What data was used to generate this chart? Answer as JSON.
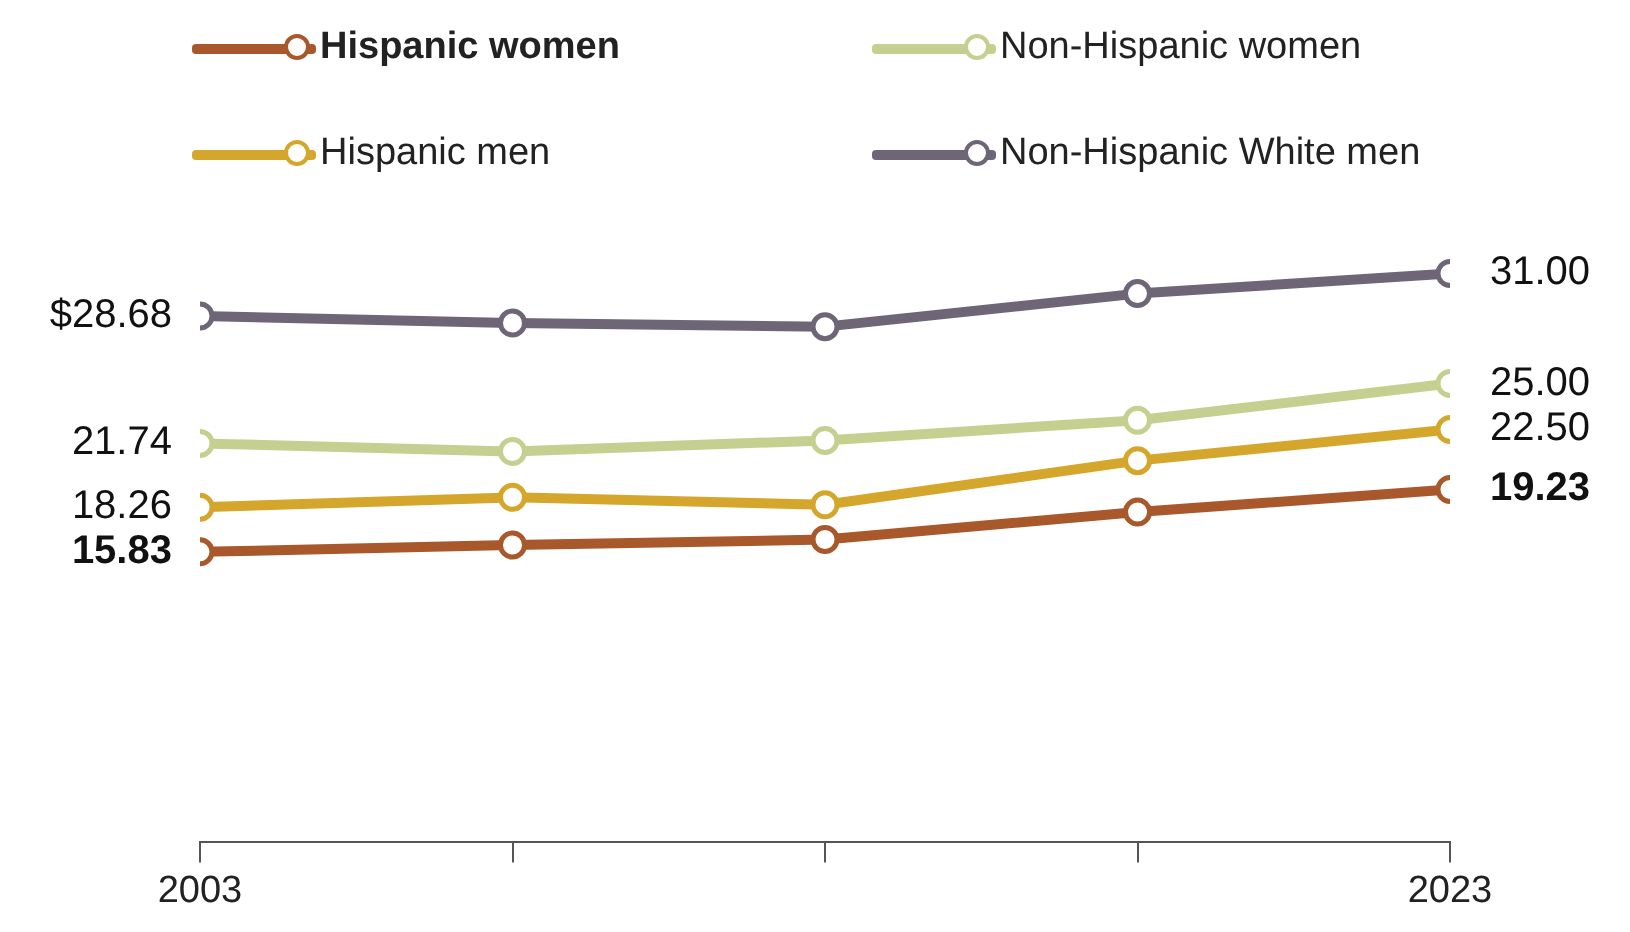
{
  "chart_data": {
    "type": "line",
    "x": [
      2003,
      2008,
      2013,
      2018,
      2023
    ],
    "xlim": [
      2003,
      2023
    ],
    "xticks": [
      2003,
      {
        "value": 2008,
        "label": null
      },
      {
        "value": 2013,
        "label": null
      },
      {
        "value": 2018,
        "label": null
      },
      2023
    ],
    "tick_labels": "x",
    "legend": "top",
    "marker": "circle",
    "line_style": "solid",
    "series": [
      {
        "name": "Hispanic women",
        "color": "#a8582a",
        "values": [
          15.83,
          16.2,
          16.5,
          18.0,
          19.23
        ],
        "value_labels": [
          "15.83",
          null,
          null,
          null,
          "19.23"
        ]
      },
      {
        "name": "Non-Hispanic women",
        "color": "#c5cf8f",
        "values": [
          21.74,
          21.3,
          21.9,
          23.0,
          25.0
        ],
        "value_labels": [
          "21.74",
          null,
          null,
          null,
          "25.00"
        ]
      },
      {
        "name": "Hispanic men",
        "color": "#d4a72c",
        "values": [
          18.26,
          18.8,
          18.4,
          20.8,
          22.5
        ],
        "value_labels": [
          "18.26",
          null,
          null,
          null,
          "22.50"
        ]
      },
      {
        "name": "Non-Hispanic White men",
        "color": "#6e6577",
        "values": [
          28.68,
          28.3,
          28.1,
          29.9,
          31.0
        ],
        "value_labels": [
          "$28.68",
          null,
          null,
          null,
          "31.00"
        ]
      }
    ]
  }
}
